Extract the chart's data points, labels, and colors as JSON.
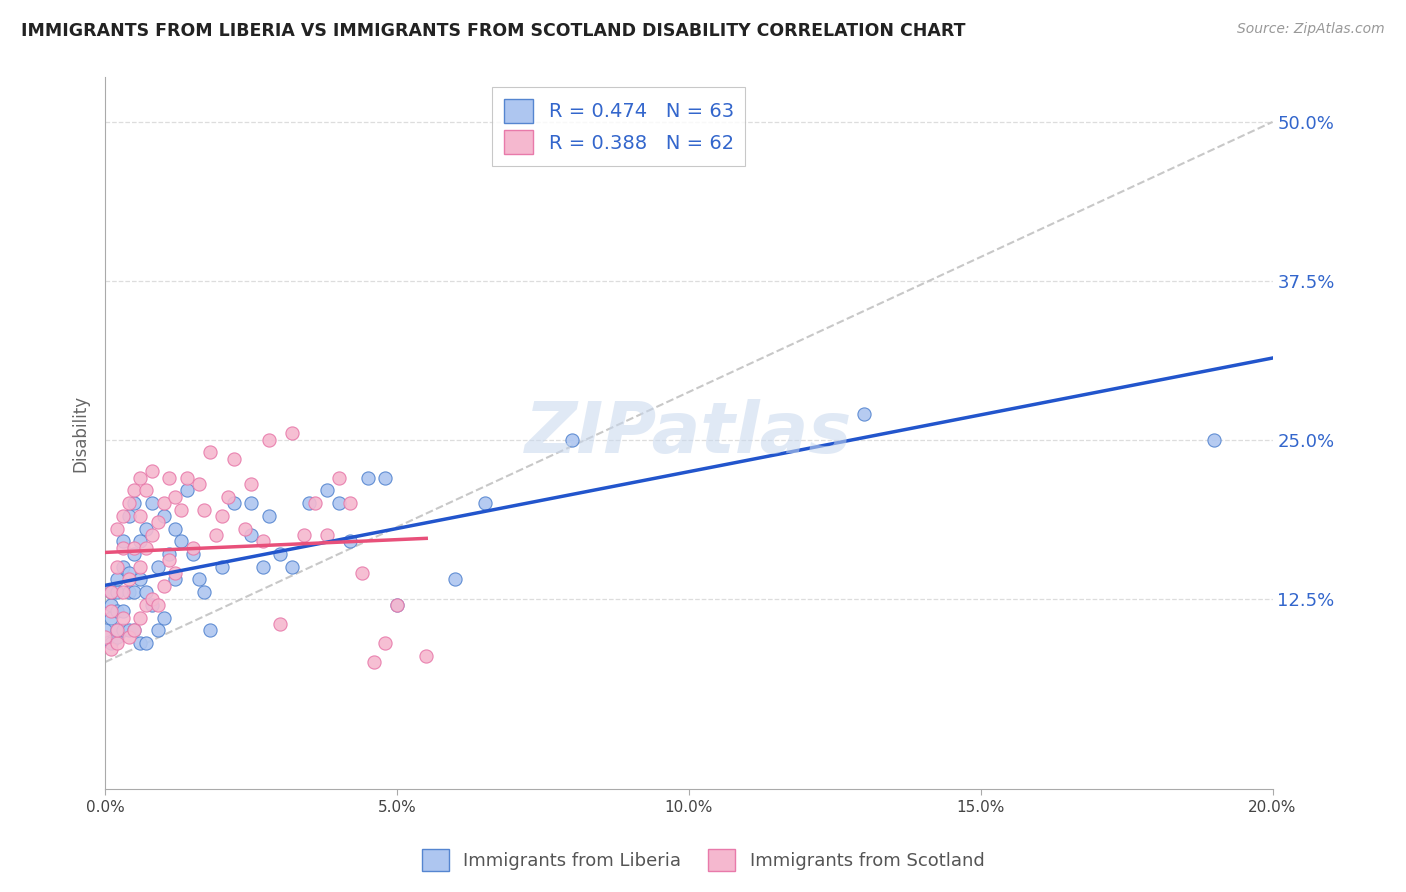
{
  "title": "IMMIGRANTS FROM LIBERIA VS IMMIGRANTS FROM SCOTLAND DISABILITY CORRELATION CHART",
  "source": "Source: ZipAtlas.com",
  "ylabel": "Disability",
  "ytick_positions": [
    0.125,
    0.25,
    0.375,
    0.5
  ],
  "ytick_labels": [
    "12.5%",
    "25.0%",
    "37.5%",
    "50.0%"
  ],
  "xtick_positions": [
    0.0,
    0.05,
    0.1,
    0.15,
    0.2
  ],
  "xtick_labels": [
    "0.0%",
    "5.0%",
    "10.0%",
    "15.0%",
    "20.0%"
  ],
  "xlim": [
    0.0,
    0.2
  ],
  "ylim": [
    -0.025,
    0.535
  ],
  "liberia_R": 0.474,
  "liberia_N": 63,
  "scotland_R": 0.388,
  "scotland_N": 62,
  "liberia_color": "#aec6f0",
  "scotland_color": "#f5b8cf",
  "liberia_edge_color": "#5585d0",
  "scotland_edge_color": "#e87aaa",
  "liberia_line_color": "#2255cc",
  "scotland_line_color": "#e8507a",
  "diagonal_color": "#c8c8c8",
  "text_color": "#3366cc",
  "watermark_color": "#c8d8ee",
  "background_color": "#ffffff",
  "grid_color": "#dddddd",
  "liberia_x": [
    0.0,
    0.001,
    0.001,
    0.001,
    0.001,
    0.002,
    0.002,
    0.002,
    0.002,
    0.002,
    0.003,
    0.003,
    0.003,
    0.003,
    0.004,
    0.004,
    0.004,
    0.004,
    0.005,
    0.005,
    0.005,
    0.005,
    0.006,
    0.006,
    0.006,
    0.007,
    0.007,
    0.007,
    0.008,
    0.008,
    0.009,
    0.009,
    0.01,
    0.01,
    0.011,
    0.012,
    0.012,
    0.013,
    0.014,
    0.015,
    0.016,
    0.017,
    0.018,
    0.02,
    0.022,
    0.025,
    0.025,
    0.027,
    0.028,
    0.03,
    0.032,
    0.035,
    0.038,
    0.04,
    0.042,
    0.045,
    0.048,
    0.05,
    0.06,
    0.065,
    0.08,
    0.13,
    0.19
  ],
  "liberia_y": [
    0.1,
    0.09,
    0.11,
    0.12,
    0.13,
    0.095,
    0.115,
    0.13,
    0.14,
    0.1,
    0.1,
    0.115,
    0.15,
    0.17,
    0.1,
    0.13,
    0.145,
    0.19,
    0.1,
    0.13,
    0.16,
    0.2,
    0.09,
    0.14,
    0.17,
    0.09,
    0.13,
    0.18,
    0.12,
    0.2,
    0.1,
    0.15,
    0.11,
    0.19,
    0.16,
    0.14,
    0.18,
    0.17,
    0.21,
    0.16,
    0.14,
    0.13,
    0.1,
    0.15,
    0.2,
    0.175,
    0.2,
    0.15,
    0.19,
    0.16,
    0.15,
    0.2,
    0.21,
    0.2,
    0.17,
    0.22,
    0.22,
    0.12,
    0.14,
    0.2,
    0.25,
    0.27,
    0.25
  ],
  "scotland_x": [
    0.0,
    0.001,
    0.001,
    0.001,
    0.002,
    0.002,
    0.002,
    0.002,
    0.003,
    0.003,
    0.003,
    0.003,
    0.004,
    0.004,
    0.004,
    0.005,
    0.005,
    0.005,
    0.006,
    0.006,
    0.006,
    0.006,
    0.007,
    0.007,
    0.007,
    0.008,
    0.008,
    0.008,
    0.009,
    0.009,
    0.01,
    0.01,
    0.011,
    0.011,
    0.012,
    0.012,
    0.013,
    0.014,
    0.015,
    0.016,
    0.017,
    0.018,
    0.019,
    0.02,
    0.021,
    0.022,
    0.024,
    0.025,
    0.027,
    0.028,
    0.03,
    0.032,
    0.034,
    0.036,
    0.038,
    0.04,
    0.042,
    0.044,
    0.046,
    0.048,
    0.05,
    0.055
  ],
  "scotland_y": [
    0.095,
    0.085,
    0.115,
    0.13,
    0.09,
    0.1,
    0.15,
    0.18,
    0.11,
    0.13,
    0.165,
    0.19,
    0.095,
    0.14,
    0.2,
    0.1,
    0.165,
    0.21,
    0.11,
    0.15,
    0.19,
    0.22,
    0.12,
    0.165,
    0.21,
    0.125,
    0.175,
    0.225,
    0.12,
    0.185,
    0.135,
    0.2,
    0.155,
    0.22,
    0.145,
    0.205,
    0.195,
    0.22,
    0.165,
    0.215,
    0.195,
    0.24,
    0.175,
    0.19,
    0.205,
    0.235,
    0.18,
    0.215,
    0.17,
    0.25,
    0.105,
    0.255,
    0.175,
    0.2,
    0.175,
    0.22,
    0.2,
    0.145,
    0.075,
    0.09,
    0.12,
    0.08
  ]
}
